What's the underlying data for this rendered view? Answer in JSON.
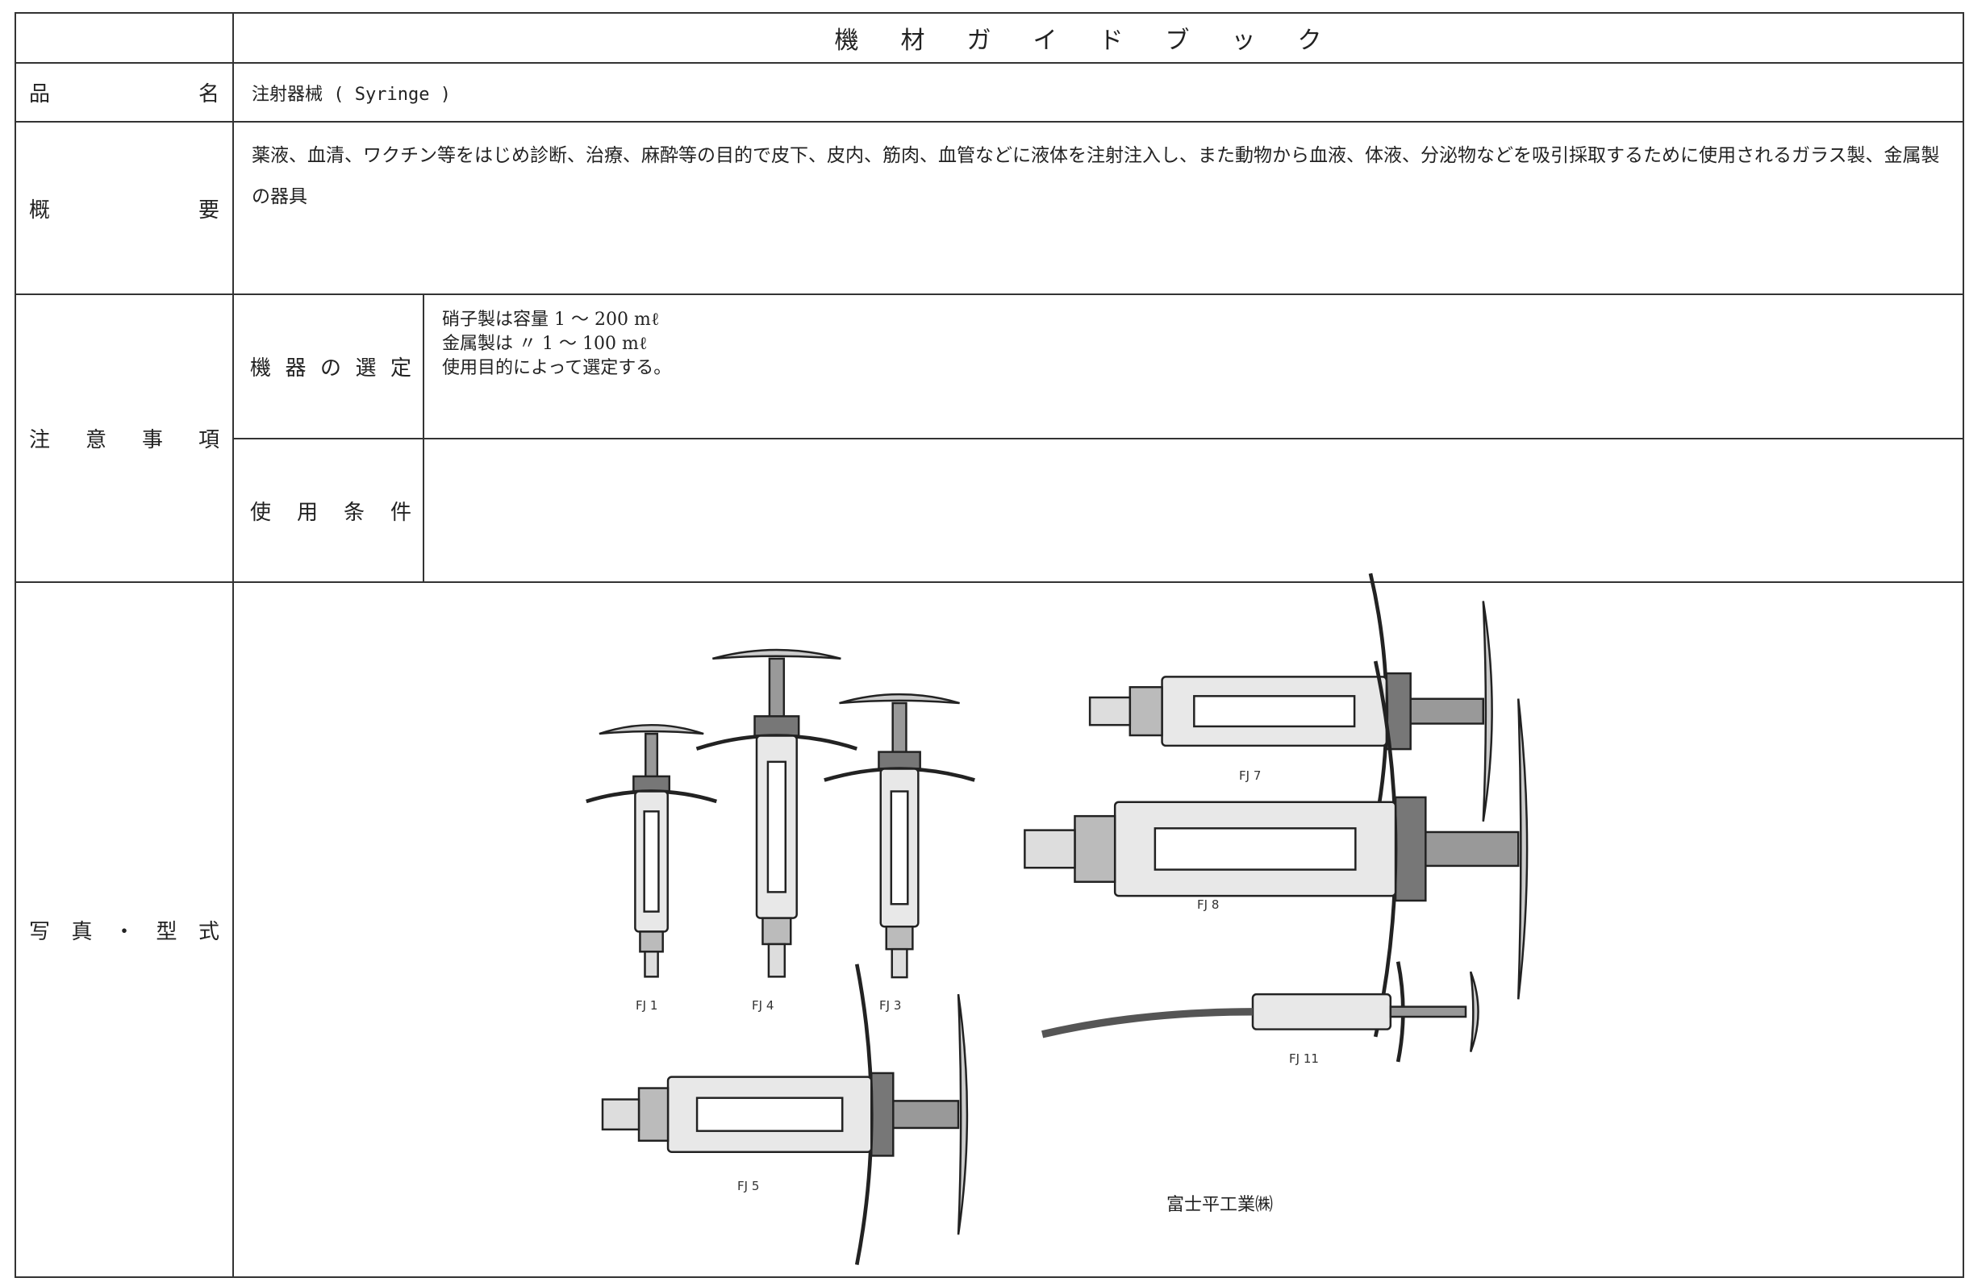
{
  "header": {
    "title": "機材ガイドブック"
  },
  "rows": {
    "product_name": {
      "label": "品名",
      "text": "注射器械 ( Syringe )"
    },
    "overview": {
      "label": "概要",
      "text": "薬液、血清、ワクチン等をはじめ診断、治療、麻酔等の目的で皮下、皮内、筋肉、血管などに液体を注射注入し、また動物から血液、体液、分泌物などを吸引採取するために使用されるガラス製、金属製の器具"
    },
    "notes": {
      "label": "注意事項",
      "selection": {
        "label": "機器の選定",
        "lines": [
          "硝子製は容量 1 ～ 200 mℓ",
          "金属製は 〃 1 ～ 100 mℓ",
          "使用目的によって選定する。"
        ]
      },
      "conditions": {
        "label": "使用条件"
      }
    },
    "photos": {
      "label": "写真・型式",
      "models": [
        "FJ 1",
        "FJ 4",
        "FJ 3",
        "FJ 7",
        "FJ 8",
        "FJ 11",
        "FJ 5"
      ],
      "maker": "富士平工業㈱"
    }
  }
}
